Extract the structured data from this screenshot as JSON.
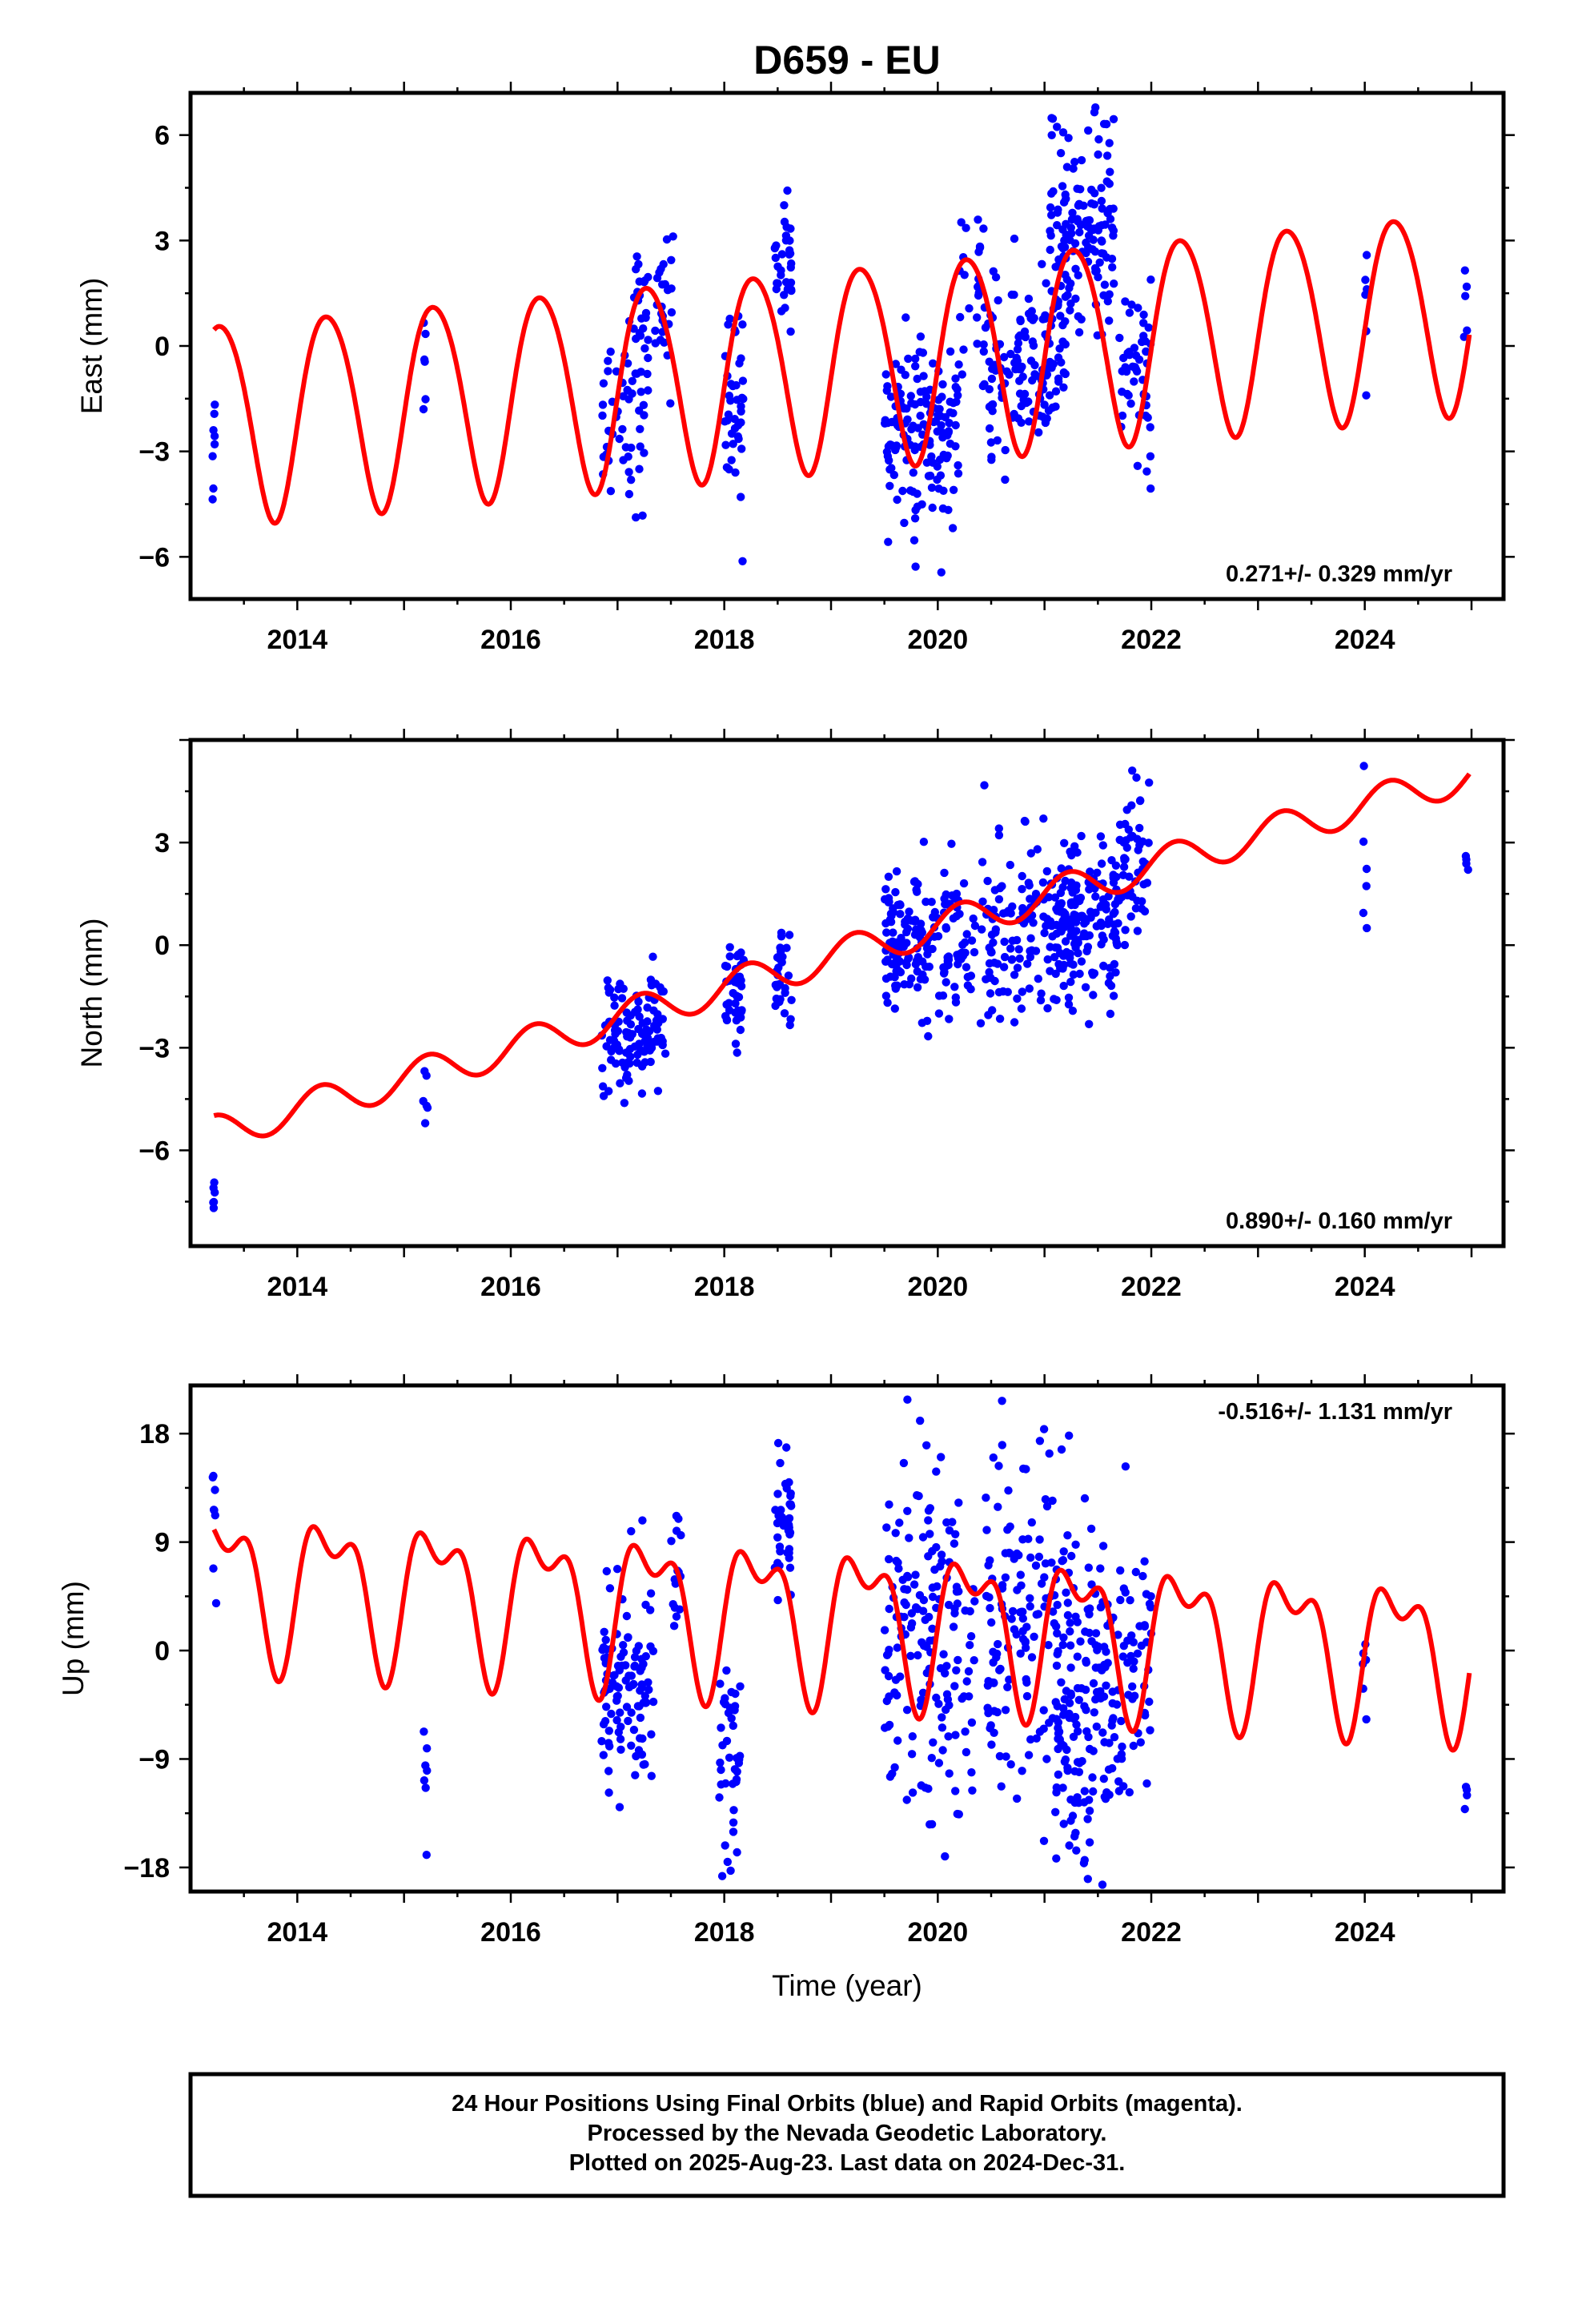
{
  "title": "D659 - EU",
  "caption": {
    "lines": [
      "24 Hour Positions Using Final Orbits (blue) and Rapid Orbits (magenta).",
      "Processed by the Nevada Geodetic Laboratory.",
      "Plotted on 2025-Aug-23. Last data on 2024-Dec-31."
    ]
  },
  "colors": {
    "final_orbits": "#0000ff",
    "model_fit": "#ff0000",
    "frame": "#000000",
    "background": "#ffffff"
  },
  "chart_data": [
    {
      "type": "scatter",
      "component": "East",
      "ylabel": "East (mm)",
      "xlabel": "",
      "xlim": [
        2013.0,
        2025.3
      ],
      "ylim": [
        -7.2,
        7.2
      ],
      "x_ticks": [
        2014,
        2016,
        2018,
        2020,
        2022,
        2024
      ],
      "y_ticks": [
        -6,
        -3,
        0,
        3,
        6
      ],
      "rate": "0.271+/- 0.329 mm/yr",
      "rate_position": "bottom-right",
      "model": {
        "rate": 0.271,
        "offset": -0.5,
        "cos1": -0.6,
        "sin1": 2.8,
        "cos2": 0.2,
        "sin2": 0.2
      },
      "clusters": [
        {
          "t": 2013.22,
          "span": 0.02,
          "n": 8,
          "mean": -3.2,
          "sd": 0.9
        },
        {
          "t": 2015.2,
          "span": 0.02,
          "n": 6,
          "mean": -0.8,
          "sd": 0.9
        },
        {
          "t": 2017.05,
          "span": 0.2,
          "n": 50,
          "mean": -2.2,
          "sd": 1.6
        },
        {
          "t": 2017.35,
          "span": 0.2,
          "n": 50,
          "mean": 1.2,
          "sd": 1.3
        },
        {
          "t": 2018.1,
          "span": 0.1,
          "n": 40,
          "mean": -1.5,
          "sd": 1.5
        },
        {
          "t": 2018.55,
          "span": 0.08,
          "n": 35,
          "mean": 2.3,
          "sd": 0.8
        },
        {
          "t": 2019.85,
          "span": 0.35,
          "n": 150,
          "mean": -2.6,
          "sd": 1.4
        },
        {
          "t": 2020.3,
          "span": 0.1,
          "n": 20,
          "mean": 1.6,
          "sd": 1.1
        },
        {
          "t": 2020.8,
          "span": 0.4,
          "n": 140,
          "mean": -0.5,
          "sd": 1.4
        },
        {
          "t": 2021.35,
          "span": 0.3,
          "n": 140,
          "mean": 3.2,
          "sd": 1.6
        },
        {
          "t": 2021.85,
          "span": 0.15,
          "n": 50,
          "mean": -1.0,
          "sd": 1.3
        },
        {
          "t": 2024.0,
          "span": 0.02,
          "n": 6,
          "mean": 1.0,
          "sd": 1.0
        },
        {
          "t": 2024.95,
          "span": 0.02,
          "n": 5,
          "mean": 1.1,
          "sd": 0.6
        }
      ]
    },
    {
      "type": "scatter",
      "component": "North",
      "ylabel": "North (mm)",
      "xlabel": "",
      "xlim": [
        2013.0,
        2025.3
      ],
      "ylim": [
        -8.8,
        6.0
      ],
      "x_ticks": [
        2014,
        2016,
        2018,
        2020,
        2022,
        2024
      ],
      "y_ticks": [
        -6,
        -3,
        0,
        3
      ],
      "rate": "0.890+/- 0.160 mm/yr",
      "rate_position": "bottom-right",
      "model": {
        "rate": 0.89,
        "offset": -0.35,
        "cos1": 0.1,
        "sin1": 0.5,
        "cos2": 0.0,
        "sin2": 0.0
      },
      "clusters": [
        {
          "t": 2013.22,
          "span": 0.02,
          "n": 6,
          "mean": -7.6,
          "sd": 0.4
        },
        {
          "t": 2015.2,
          "span": 0.02,
          "n": 6,
          "mean": -4.4,
          "sd": 0.9
        },
        {
          "t": 2017.15,
          "span": 0.3,
          "n": 110,
          "mean": -2.7,
          "sd": 0.8
        },
        {
          "t": 2018.1,
          "span": 0.1,
          "n": 40,
          "mean": -1.2,
          "sd": 0.9
        },
        {
          "t": 2018.55,
          "span": 0.08,
          "n": 30,
          "mean": -0.9,
          "sd": 0.9
        },
        {
          "t": 2019.85,
          "span": 0.35,
          "n": 150,
          "mean": 0.0,
          "sd": 1.0
        },
        {
          "t": 2020.25,
          "span": 0.1,
          "n": 20,
          "mean": -0.3,
          "sd": 1.0
        },
        {
          "t": 2020.85,
          "span": 0.45,
          "n": 150,
          "mean": 0.4,
          "sd": 1.2
        },
        {
          "t": 2021.4,
          "span": 0.3,
          "n": 140,
          "mean": 0.8,
          "sd": 1.1
        },
        {
          "t": 2021.85,
          "span": 0.15,
          "n": 50,
          "mean": 2.5,
          "sd": 1.2
        },
        {
          "t": 2024.0,
          "span": 0.02,
          "n": 6,
          "mean": 2.8,
          "sd": 1.3
        },
        {
          "t": 2024.95,
          "span": 0.02,
          "n": 4,
          "mean": 2.4,
          "sd": 0.3
        }
      ]
    },
    {
      "type": "scatter",
      "component": "Up",
      "ylabel": "Up (mm)",
      "xlabel": "Time (year)",
      "xlim": [
        2013.0,
        2025.3
      ],
      "ylim": [
        -20.0,
        22.0
      ],
      "x_ticks": [
        2014,
        2016,
        2018,
        2020,
        2022,
        2024
      ],
      "y_ticks": [
        -18,
        -9,
        0,
        9,
        18
      ],
      "rate": "-0.516+/- 1.131 mm/yr",
      "rate_position": "top-right",
      "model": {
        "rate": -0.516,
        "offset": 3.0,
        "cos1": -2.0,
        "sin1": 5.0,
        "cos2": 1.5,
        "sin2": 2.5
      },
      "clusters": [
        {
          "t": 2013.22,
          "span": 0.02,
          "n": 8,
          "mean": 10.0,
          "sd": 3.5
        },
        {
          "t": 2015.2,
          "span": 0.02,
          "n": 7,
          "mean": -10.0,
          "sd": 3.0
        },
        {
          "t": 2017.1,
          "span": 0.25,
          "n": 110,
          "mean": -3.0,
          "sd": 4.5
        },
        {
          "t": 2017.55,
          "span": 0.05,
          "n": 15,
          "mean": 6.0,
          "sd": 4.0
        },
        {
          "t": 2018.05,
          "span": 0.1,
          "n": 40,
          "mean": -8.0,
          "sd": 5.0
        },
        {
          "t": 2018.55,
          "span": 0.08,
          "n": 40,
          "mean": 10.5,
          "sd": 3.5
        },
        {
          "t": 2019.85,
          "span": 0.35,
          "n": 150,
          "mean": 1.0,
          "sd": 7.0
        },
        {
          "t": 2020.25,
          "span": 0.1,
          "n": 20,
          "mean": -3.0,
          "sd": 5.0
        },
        {
          "t": 2020.85,
          "span": 0.4,
          "n": 150,
          "mean": 3.0,
          "sd": 8.0
        },
        {
          "t": 2021.4,
          "span": 0.3,
          "n": 150,
          "mean": -5.0,
          "sd": 6.5
        },
        {
          "t": 2021.85,
          "span": 0.15,
          "n": 50,
          "mean": -2.0,
          "sd": 6.0
        },
        {
          "t": 2024.0,
          "span": 0.02,
          "n": 6,
          "mean": -4.0,
          "sd": 3.5
        },
        {
          "t": 2024.95,
          "span": 0.02,
          "n": 4,
          "mean": -12.0,
          "sd": 0.6
        }
      ]
    }
  ]
}
